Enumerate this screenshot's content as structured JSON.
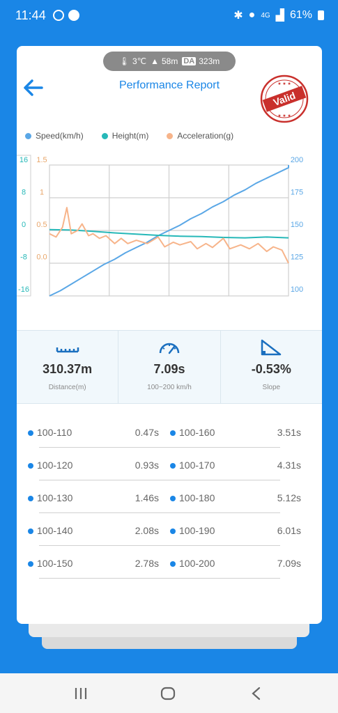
{
  "status_bar": {
    "time": "11:44",
    "network": "4G",
    "battery": "61%"
  },
  "conditions": {
    "temperature": "3℃",
    "altitude": "58m",
    "density_altitude_badge": "DA",
    "density_altitude": "323m"
  },
  "header": {
    "title": "Performance Report",
    "stamp_text": "Valid"
  },
  "legend": [
    {
      "label": "Speed(km/h)",
      "color": "#5aa7e6"
    },
    {
      "label": "Height(m)",
      "color": "#26b8b8"
    },
    {
      "label": "Acceleration(g)",
      "color": "#f7b48a"
    }
  ],
  "chart_data": {
    "type": "line",
    "series": [
      {
        "name": "Speed(km/h)",
        "axis": "right",
        "color": "#5aa7e6",
        "points": [
          [
            0,
            100
          ],
          [
            0.05,
            104
          ],
          [
            0.1,
            109
          ],
          [
            0.15,
            114
          ],
          [
            0.2,
            119
          ],
          [
            0.25,
            124
          ],
          [
            0.3,
            128
          ],
          [
            0.35,
            133
          ],
          [
            0.4,
            137
          ],
          [
            0.45,
            141
          ],
          [
            0.5,
            146
          ],
          [
            0.55,
            150
          ],
          [
            0.6,
            154
          ],
          [
            0.65,
            159
          ],
          [
            0.7,
            163
          ],
          [
            0.75,
            168
          ],
          [
            0.8,
            172
          ],
          [
            0.85,
            177
          ],
          [
            0.9,
            181
          ],
          [
            0.95,
            186
          ],
          [
            1.0,
            190
          ],
          [
            1.05,
            194
          ],
          [
            1.1,
            198
          ],
          [
            1.1,
            200
          ]
        ]
      },
      {
        "name": "Height(m)",
        "axis": "left-height",
        "color": "#26b8b8",
        "points": [
          [
            0,
            0.2
          ],
          [
            0.1,
            0.1
          ],
          [
            0.2,
            -0.2
          ],
          [
            0.3,
            -0.6
          ],
          [
            0.4,
            -0.9
          ],
          [
            0.5,
            -1.2
          ],
          [
            0.6,
            -1.4
          ],
          [
            0.7,
            -1.5
          ],
          [
            0.8,
            -1.7
          ],
          [
            0.9,
            -1.8
          ],
          [
            1.0,
            -1.6
          ],
          [
            1.1,
            -1.8
          ]
        ]
      },
      {
        "name": "Acceleration(g)",
        "axis": "left-accel",
        "color": "#f7b48a",
        "points": [
          [
            0,
            0.45
          ],
          [
            0.03,
            0.4
          ],
          [
            0.06,
            0.55
          ],
          [
            0.08,
            0.85
          ],
          [
            0.1,
            0.45
          ],
          [
            0.13,
            0.5
          ],
          [
            0.15,
            0.6
          ],
          [
            0.18,
            0.42
          ],
          [
            0.2,
            0.45
          ],
          [
            0.23,
            0.38
          ],
          [
            0.26,
            0.42
          ],
          [
            0.3,
            0.3
          ],
          [
            0.33,
            0.38
          ],
          [
            0.36,
            0.3
          ],
          [
            0.4,
            0.35
          ],
          [
            0.45,
            0.3
          ],
          [
            0.5,
            0.4
          ],
          [
            0.53,
            0.25
          ],
          [
            0.57,
            0.32
          ],
          [
            0.6,
            0.28
          ],
          [
            0.65,
            0.33
          ],
          [
            0.68,
            0.22
          ],
          [
            0.72,
            0.3
          ],
          [
            0.75,
            0.24
          ],
          [
            0.8,
            0.38
          ],
          [
            0.83,
            0.22
          ],
          [
            0.88,
            0.28
          ],
          [
            0.92,
            0.22
          ],
          [
            0.96,
            0.3
          ],
          [
            1.0,
            0.18
          ],
          [
            1.03,
            0.25
          ],
          [
            1.07,
            0.2
          ],
          [
            1.1,
            0.0
          ]
        ]
      }
    ],
    "x_range": [
      0,
      1.1
    ],
    "y_left_height": {
      "ticks": [
        "16",
        "8",
        "0",
        "-8",
        "-16"
      ],
      "range": [
        -16,
        16
      ]
    },
    "y_left_accel": {
      "ticks": [
        "1.5",
        "1",
        "0.5",
        "0.0"
      ],
      "range": [
        -0.5,
        1.5
      ]
    },
    "y_right_speed": {
      "ticks": [
        "200",
        "175",
        "150",
        "125",
        "100"
      ],
      "range": [
        100,
        200
      ]
    },
    "grid": true
  },
  "stats": [
    {
      "value": "310.37m",
      "label": "Distance(m)",
      "icon": "ruler-icon"
    },
    {
      "value": "7.09s",
      "label": "100~200 km/h",
      "icon": "speedometer-icon"
    },
    {
      "value": "-0.53%",
      "label": "Slope",
      "icon": "slope-icon"
    }
  ],
  "splits": [
    {
      "left_range": "100-110",
      "left_time": "0.47s",
      "right_range": "100-160",
      "right_time": "3.51s"
    },
    {
      "left_range": "100-120",
      "left_time": "0.93s",
      "right_range": "100-170",
      "right_time": "4.31s"
    },
    {
      "left_range": "100-130",
      "left_time": "1.46s",
      "right_range": "100-180",
      "right_time": "5.12s"
    },
    {
      "left_range": "100-140",
      "left_time": "2.08s",
      "right_range": "100-190",
      "right_time": "6.01s"
    },
    {
      "left_range": "100-150",
      "left_time": "2.78s",
      "right_range": "100-200",
      "right_time": "7.09s"
    }
  ]
}
